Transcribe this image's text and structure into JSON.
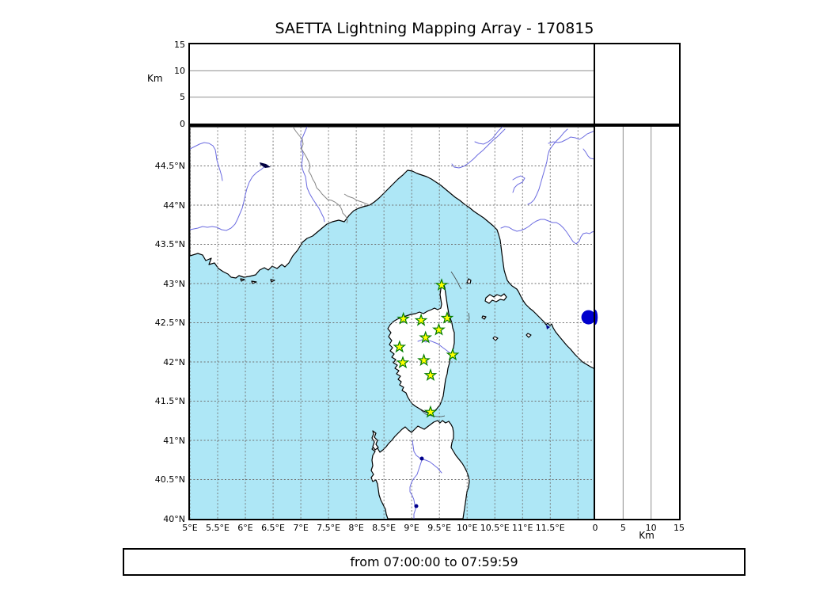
{
  "title": "SAETTA Lightning Mapping Array - 170815",
  "footer": {
    "time_range": "from 07:00:00 to 07:59:59"
  },
  "chart_data": {
    "type": "map",
    "title": "SAETTA Lightning Mapping Array - 170815",
    "date_code": "170815",
    "time_range": "from 07:00:00 to 07:59:59",
    "layout": "lon-lat map with altitude cross-section panels (top: lon/alt, right: alt/lat), grid on, dashed graticule every 0.5 degree",
    "map": {
      "lon_min": 5,
      "lon_max": 12.31,
      "lat_min": 40,
      "lat_max": 45,
      "lon_gridlines": [
        5,
        5.5,
        6,
        6.5,
        7,
        7.5,
        8,
        8.5,
        9,
        9.5,
        10,
        10.5,
        11,
        11.5,
        12
      ],
      "lat_gridlines": [
        40.5,
        41,
        41.5,
        42,
        42.5,
        43,
        43.5,
        44,
        44.5
      ],
      "lon_ticks": [
        {
          "value": 5,
          "label": "5°E"
        },
        {
          "value": 5.5,
          "label": "5.5°E"
        },
        {
          "value": 6,
          "label": "6°E"
        },
        {
          "value": 6.5,
          "label": "6.5°E"
        },
        {
          "value": 7,
          "label": "7°E"
        },
        {
          "value": 7.5,
          "label": "7.5°E"
        },
        {
          "value": 8,
          "label": "8°E"
        },
        {
          "value": 8.5,
          "label": "8.5°E"
        },
        {
          "value": 9,
          "label": "9°E"
        },
        {
          "value": 9.5,
          "label": "9.5°E"
        },
        {
          "value": 10,
          "label": "10°E"
        },
        {
          "value": 10.5,
          "label": "10.5°E"
        },
        {
          "value": 11,
          "label": "11°E"
        },
        {
          "value": 11.5,
          "label": "11.5°E"
        }
      ],
      "lat_ticks": [
        {
          "value": 44.5,
          "label": "44.5°N"
        },
        {
          "value": 44,
          "label": "44°N"
        },
        {
          "value": 43.5,
          "label": "43.5°N"
        },
        {
          "value": 43,
          "label": "43°N"
        },
        {
          "value": 42.5,
          "label": "42.5°N"
        },
        {
          "value": 42,
          "label": "42°N"
        },
        {
          "value": 41.5,
          "label": "41.5°N"
        },
        {
          "value": 41,
          "label": "41°N"
        },
        {
          "value": 40.5,
          "label": "40.5°N"
        },
        {
          "value": 40,
          "label": "40°N"
        }
      ]
    },
    "altitude_axis": {
      "label": "Km",
      "min": 0,
      "max": 15,
      "ticks": [
        {
          "value": 0,
          "label": "0"
        },
        {
          "value": 5,
          "label": "5"
        },
        {
          "value": 10,
          "label": "10"
        },
        {
          "value": 15,
          "label": "15"
        }
      ],
      "gridlines": [
        5,
        10
      ]
    },
    "stations": [
      {
        "lon": 9.54,
        "lat": 42.98
      },
      {
        "lon": 8.85,
        "lat": 42.55
      },
      {
        "lon": 9.17,
        "lat": 42.53
      },
      {
        "lon": 9.64,
        "lat": 42.56
      },
      {
        "lon": 9.49,
        "lat": 42.41
      },
      {
        "lon": 9.25,
        "lat": 42.31
      },
      {
        "lon": 8.78,
        "lat": 42.19
      },
      {
        "lon": 9.74,
        "lat": 42.09
      },
      {
        "lon": 9.22,
        "lat": 42.02
      },
      {
        "lon": 8.84,
        "lat": 41.99
      },
      {
        "lon": 9.34,
        "lat": 41.83
      },
      {
        "lon": 9.34,
        "lat": 41.36
      }
    ],
    "events": [
      {
        "lon": 12.19,
        "lat": 42.57,
        "alt_km": 0
      }
    ],
    "colors": {
      "sea": "#aee7f6",
      "land": "#ffffff",
      "coast": "#000000",
      "river": "#6b6be0",
      "admin_border": "#848484",
      "grid": "#707070",
      "panel_grid": "#909090",
      "station_fill": "#ffff00",
      "station_edge": "#007a00",
      "event": "#0000cd",
      "lake": "#000040",
      "small_lake": "#00008b"
    }
  }
}
